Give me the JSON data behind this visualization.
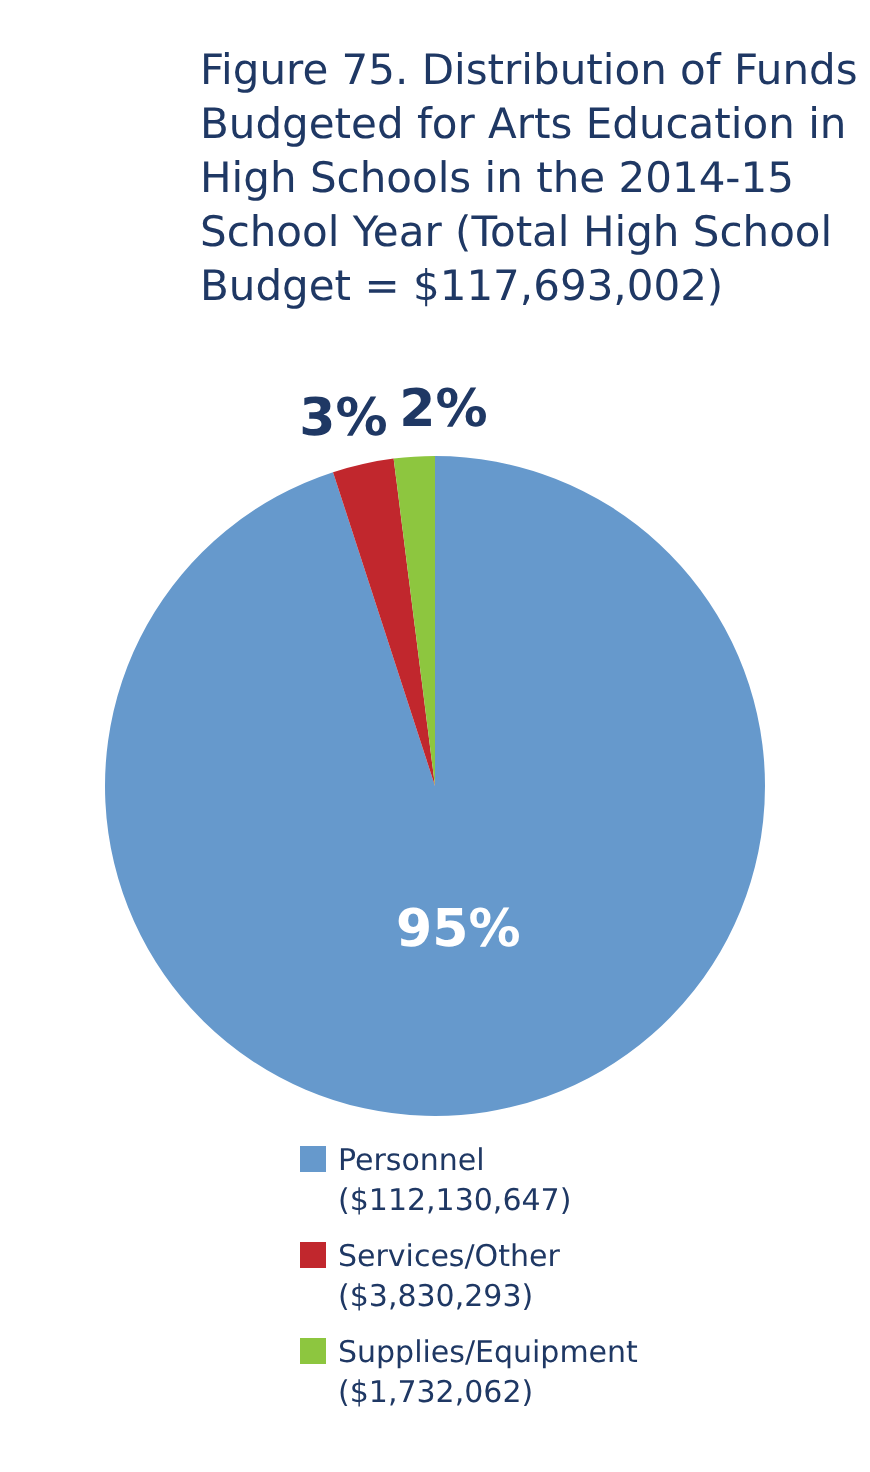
{
  "chart_data": {
    "type": "pie",
    "title": "Figure 75. Distribution of Funds Budgeted for Arts Education in High Schools in the 2014-15 School Year (Total High School Budget = $117,693,002)",
    "categories": [
      "Personnel ($112,130,647)",
      "Services/Other ($3,830,293)",
      "Supplies/Equipment ($1,732,062)"
    ],
    "values": [
      95,
      3,
      2
    ],
    "colors": [
      "#6699cc",
      "#c1272d",
      "#8dc63f"
    ],
    "value_labels": [
      "95%",
      "3%",
      "2%"
    ],
    "legend": "bottom"
  }
}
